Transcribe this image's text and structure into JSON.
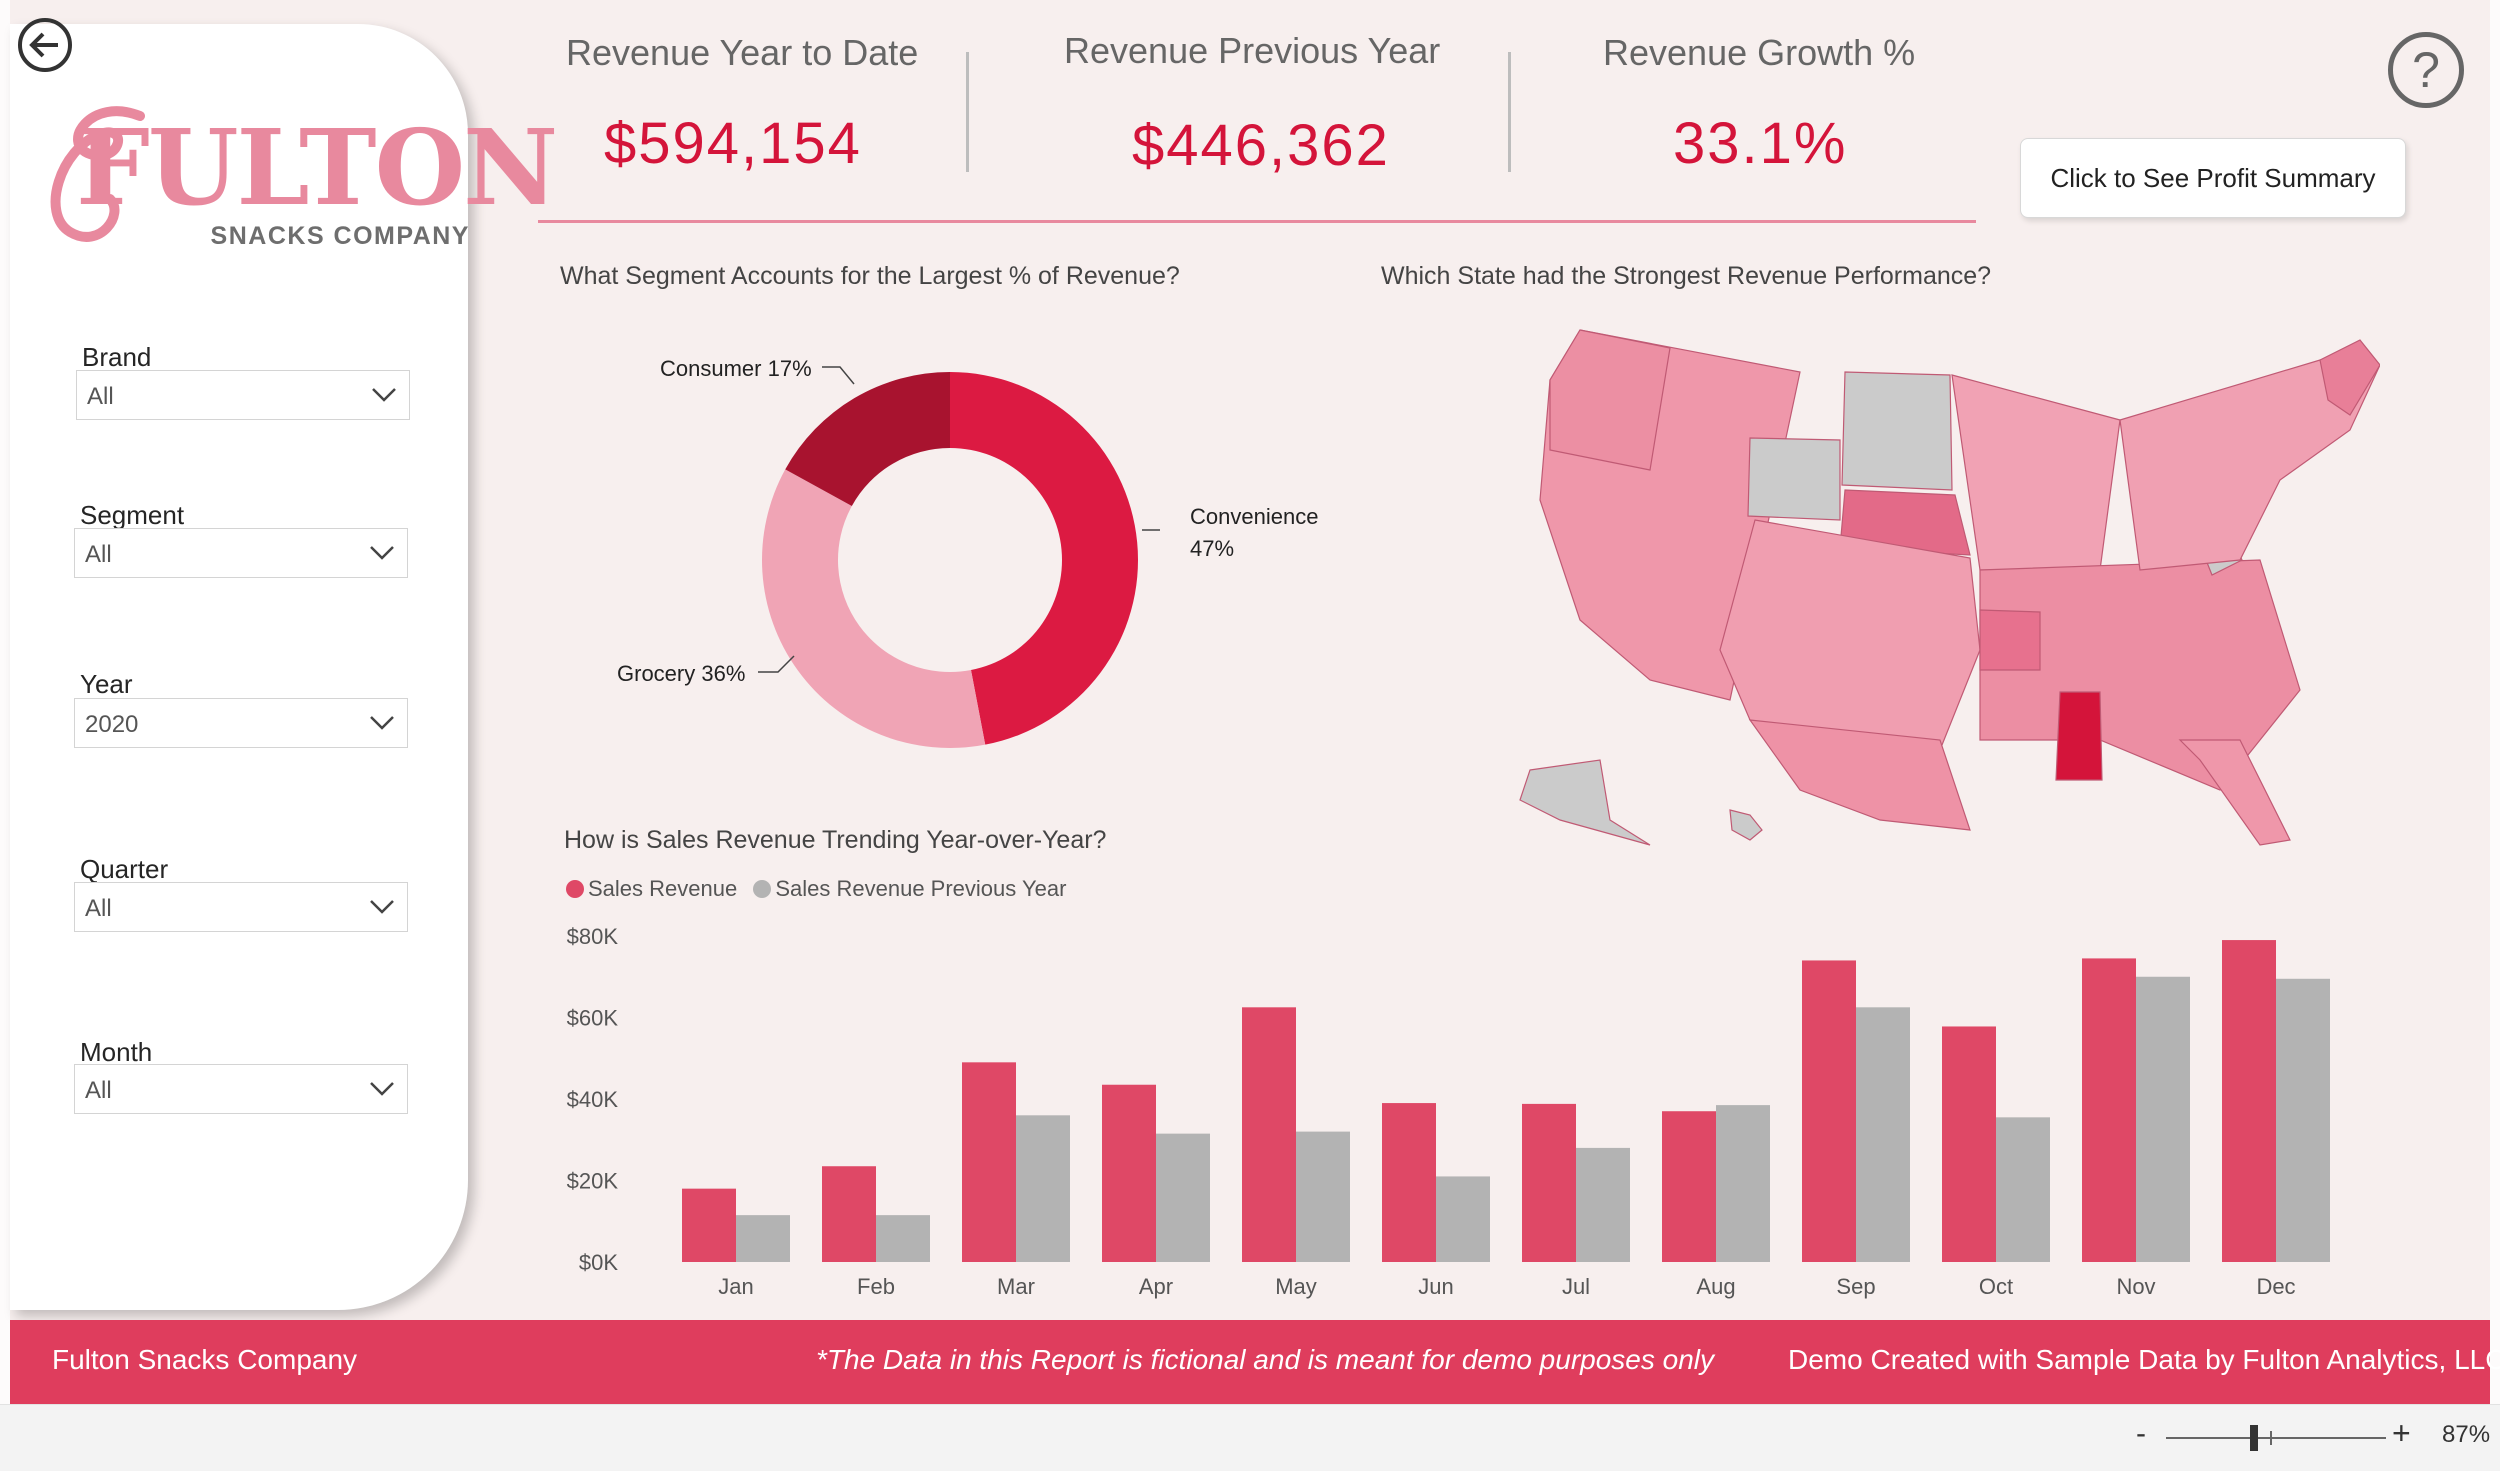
{
  "brand": {
    "logo_word": "FULTON",
    "logo_sub": "SNACKS COMPANY",
    "accent": "#df3d5d",
    "logo_pink": "#e8899e"
  },
  "filters": [
    {
      "label": "Brand",
      "value": "All"
    },
    {
      "label": "Segment",
      "value": "All"
    },
    {
      "label": "Year",
      "value": "2020"
    },
    {
      "label": "Quarter",
      "value": "All"
    },
    {
      "label": "Month",
      "value": "All"
    }
  ],
  "kpis": [
    {
      "title": "Revenue Year to Date",
      "value": "$594,154"
    },
    {
      "title": "Revenue Previous Year",
      "value": "$446,362"
    },
    {
      "title": "Revenue Growth %",
      "value": "33.1%"
    }
  ],
  "buttons": {
    "profit_summary": "Click to See Profit Summary",
    "help": "?"
  },
  "sections": {
    "segment_title": "What Segment Accounts for the Largest % of Revenue?",
    "state_title": "Which State had the Strongest Revenue Performance?",
    "trend_title": "How is Sales Revenue Trending Year-over-Year?"
  },
  "donut": {
    "consumer_label": "Consumer 17%",
    "convenience_label_1": "Convenience",
    "convenience_label_2": "47%",
    "grocery_label": "Grocery 36%"
  },
  "footer": {
    "left": "Fulton Snacks Company",
    "center": "*The Data in this Report is fictional and is meant for demo purposes only",
    "right": "Demo Created with Sample Data by Fulton Analytics, LLC"
  },
  "statusbar": {
    "minus": "-",
    "plus": "+",
    "zoom": "87%",
    "zoom_level": 0.87
  },
  "icons": {
    "back": "back-arrow-icon",
    "help": "question-icon",
    "dropdown": "chevron-down-icon"
  },
  "chart_data": [
    {
      "type": "pie",
      "title": "What Segment Accounts for the Largest % of Revenue?",
      "categories": [
        "Convenience",
        "Grocery",
        "Consumer"
      ],
      "values": [
        47,
        36,
        17
      ],
      "colors": [
        "#dc1a42",
        "#f0a4b5",
        "#a8132f"
      ],
      "donut": true
    },
    {
      "type": "bar",
      "title": "How is Sales Revenue Trending Year-over-Year?",
      "categories": [
        "Jan",
        "Feb",
        "Mar",
        "Apr",
        "May",
        "Jun",
        "Jul",
        "Aug",
        "Sep",
        "Oct",
        "Nov",
        "Dec"
      ],
      "series": [
        {
          "name": "Sales Revenue",
          "color": "#df4866",
          "values": [
            18000,
            23500,
            49000,
            43500,
            62500,
            39000,
            38800,
            37000,
            74000,
            57800,
            74500,
            79000
          ]
        },
        {
          "name": "Sales Revenue Previous Year",
          "color": "#b3b3b3",
          "values": [
            11500,
            11500,
            36000,
            31500,
            32000,
            21000,
            28000,
            38500,
            62500,
            35500,
            70000,
            69500
          ]
        }
      ],
      "ylim": [
        0,
        80000
      ],
      "yticks": [
        "$0K",
        "$20K",
        "$40K",
        "$60K",
        "$80K"
      ],
      "grid": false,
      "legend": "top-left"
    }
  ]
}
